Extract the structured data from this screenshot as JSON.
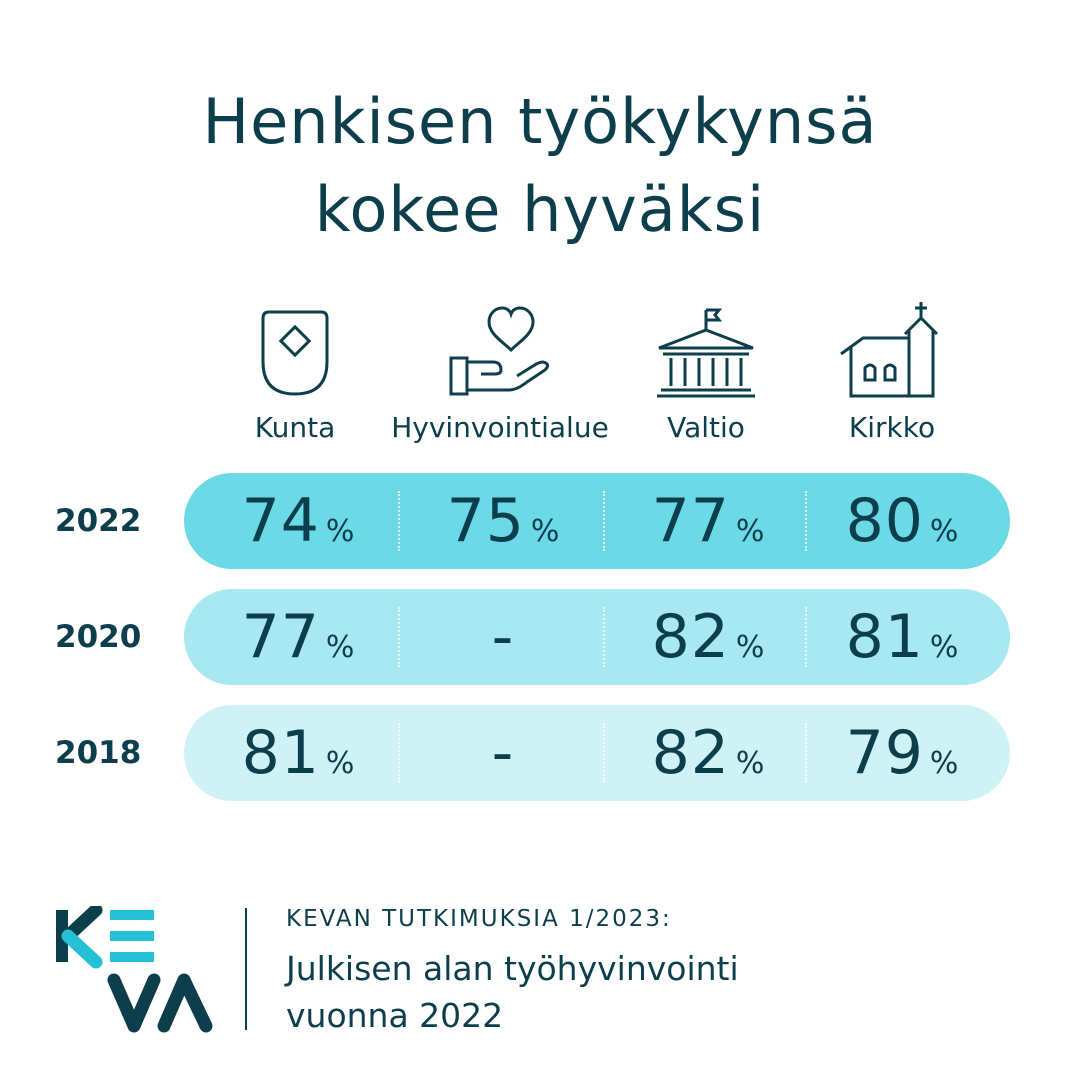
{
  "title_lines": [
    "Henkisen työkykynsä",
    "kokee hyväksi"
  ],
  "chart_data": {
    "type": "table",
    "title": "Henkisen työkykynsä kokee hyväksi",
    "columns": [
      {
        "label": "Kunta",
        "icon": "shield-icon"
      },
      {
        "label": "Hyvinvointialue",
        "icon": "heart-hand-icon"
      },
      {
        "label": "Valtio",
        "icon": "government-building-icon"
      },
      {
        "label": "Kirkko",
        "icon": "church-icon"
      }
    ],
    "rows": [
      {
        "year": "2022",
        "values": [
          "74",
          "75",
          "77",
          "80"
        ]
      },
      {
        "year": "2020",
        "values": [
          "77",
          "-",
          "82",
          "81"
        ]
      },
      {
        "year": "2018",
        "values": [
          "81",
          "-",
          "82",
          "79"
        ]
      }
    ],
    "unit": "%",
    "colors": {
      "2022": "#6cd9e6",
      "2020": "#a8e8f0",
      "2018": "#cff2f7"
    }
  },
  "footer": {
    "logo_text": "KEVA",
    "kicker": "KEVAN TUTKIMUKSIA 1/2023:",
    "lines": [
      "Julkisen alan työhyvinvointi",
      "vuonna 2022"
    ]
  },
  "colors": {
    "text": "#0d3e4c",
    "accent": "#24c1d6"
  }
}
